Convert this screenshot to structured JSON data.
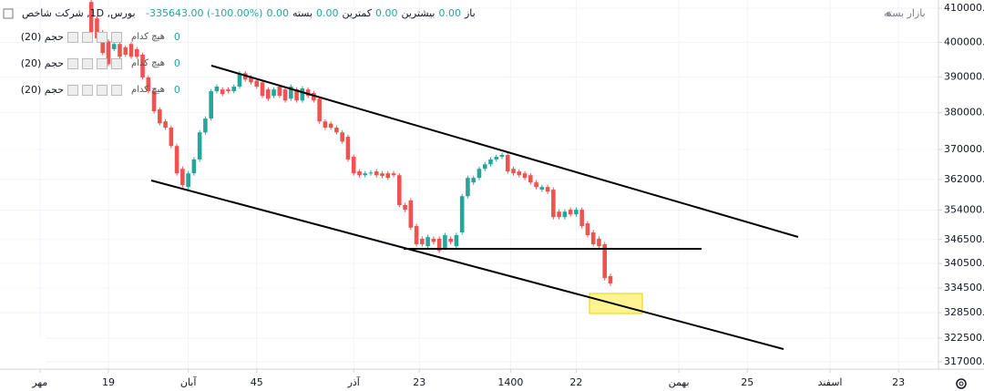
{
  "header": {
    "title": "بورس, 1D, شرکت شاخص",
    "open_label": "باز",
    "open": "0.00",
    "high_label": "بیشترین",
    "high": "0.00",
    "low_label": "کمترین",
    "low": "0.00",
    "close_label": "بسته",
    "close": "0.00",
    "change": "-335643.00 (-100.00%)",
    "status": "بازار بسته"
  },
  "indicators": [
    {
      "name": "حجم (20)",
      "source": "هیچ کدام",
      "value": 0
    },
    {
      "name": "حجم (20)",
      "source": "هیچ کدام",
      "value": 0
    },
    {
      "name": "حجم (20)",
      "source": "هیچ کدام",
      "value": 0
    }
  ],
  "chart_data": {
    "type": "candlestick",
    "log_scale": true,
    "grid": true,
    "up_color": "#26a69a",
    "down_color": "#ef5350",
    "x": [
      16,
      17,
      18,
      19,
      20,
      21,
      22,
      23,
      24,
      25,
      26,
      27,
      28,
      29,
      30,
      31,
      32,
      33,
      34,
      35,
      36,
      37,
      38,
      39,
      40,
      41,
      42,
      43,
      44,
      45,
      46,
      47,
      48,
      49,
      50,
      51,
      52,
      53,
      54,
      55,
      56,
      57,
      58,
      59,
      60,
      61,
      62,
      63,
      64,
      65,
      66,
      67,
      68,
      69,
      70,
      71,
      72,
      73,
      74,
      75,
      76,
      77,
      78,
      79,
      80,
      81,
      82,
      83,
      84,
      85,
      86,
      87,
      88,
      89,
      90,
      91,
      92,
      93,
      94,
      95,
      96,
      97,
      98,
      99,
      100,
      101,
      102,
      103,
      104,
      105,
      106,
      107
    ],
    "open": [
      411900,
      407000,
      403000,
      400300,
      398000,
      399500,
      398500,
      399500,
      398000,
      396400,
      389900,
      386000,
      380900,
      377600,
      375900,
      370900,
      364800,
      360000,
      363600,
      367300,
      374600,
      378400,
      386000,
      386500,
      386500,
      386000,
      387300,
      391100,
      389900,
      389000,
      388500,
      386500,
      384700,
      387300,
      386500,
      383900,
      386500,
      383400,
      386500,
      385500,
      383900,
      377600,
      377000,
      375900,
      374600,
      373400,
      368000,
      364100,
      363100,
      363600,
      364100,
      363600,
      363600,
      363600,
      363100,
      355300,
      356500,
      349900,
      346700,
      344800,
      346700,
      346700,
      344400,
      346700,
      344800,
      348300,
      357600,
      361200,
      362400,
      364800,
      366000,
      367300,
      368000,
      368500,
      364800,
      364100,
      363600,
      363100,
      361200,
      359300,
      360000,
      359300,
      353600,
      352200,
      354100,
      352900,
      354100,
      350600,
      348300,
      346700,
      345300,
      337400
    ],
    "high": [
      412500,
      407600,
      403600,
      400900,
      400100,
      400100,
      399100,
      400100,
      398600,
      397000,
      390500,
      386600,
      381500,
      378200,
      376500,
      371500,
      365400,
      364200,
      367900,
      375200,
      379000,
      386600,
      387900,
      387100,
      387100,
      387900,
      391700,
      391700,
      390500,
      389600,
      389100,
      387100,
      387100,
      387900,
      387100,
      387900,
      387100,
      387400,
      387100,
      386100,
      384500,
      378200,
      377600,
      376500,
      375200,
      374000,
      368600,
      364700,
      364200,
      364400,
      364700,
      364200,
      364200,
      364200,
      363700,
      355900,
      357100,
      350500,
      347300,
      347700,
      347300,
      347300,
      348200,
      347300,
      348200,
      358200,
      363000,
      363000,
      365400,
      366600,
      367900,
      368600,
      369100,
      369100,
      365400,
      364700,
      364200,
      363700,
      361800,
      360600,
      360600,
      359900,
      354200,
      354200,
      354700,
      354700,
      354700,
      351200,
      348900,
      347300,
      345900,
      338000
    ],
    "low": [
      402400,
      400500,
      396300,
      393100,
      397400,
      395200,
      395800,
      395200,
      395200,
      389300,
      385400,
      379800,
      376500,
      375300,
      370300,
      363000,
      359900,
      359400,
      363000,
      366700,
      374000,
      377800,
      385400,
      384600,
      385400,
      385400,
      386700,
      388700,
      387900,
      386700,
      384100,
      383300,
      384100,
      384100,
      382800,
      383300,
      382800,
      382800,
      384100,
      382800,
      377000,
      375300,
      375300,
      374000,
      371500,
      366700,
      363000,
      362500,
      362500,
      363000,
      362500,
      362300,
      361800,
      362500,
      354700,
      353500,
      348900,
      344700,
      344700,
      344200,
      345300,
      343100,
      343800,
      345300,
      344200,
      347700,
      357000,
      360600,
      361800,
      364200,
      365400,
      366700,
      367400,
      363500,
      363000,
      362500,
      361800,
      360600,
      359400,
      358700,
      358200,
      351600,
      351600,
      351600,
      352300,
      352300,
      349300,
      347000,
      344700,
      344200,
      336300,
      335000
    ],
    "close": [
      403000,
      401100,
      396900,
      393700,
      399500,
      395800,
      396400,
      395800,
      395800,
      389900,
      386000,
      380400,
      377100,
      375900,
      370900,
      363600,
      360500,
      363600,
      367300,
      374600,
      378400,
      386000,
      387300,
      385200,
      386000,
      387300,
      391100,
      389300,
      388500,
      387300,
      384700,
      383900,
      386500,
      384700,
      383400,
      387300,
      383400,
      386800,
      384700,
      383400,
      377600,
      375900,
      375900,
      374600,
      372100,
      367300,
      363600,
      363100,
      363600,
      363800,
      363100,
      362900,
      362400,
      363100,
      355300,
      354100,
      349500,
      345300,
      345300,
      347100,
      345900,
      343700,
      347600,
      345900,
      347600,
      357600,
      362400,
      362400,
      364800,
      366000,
      367300,
      368000,
      368500,
      364100,
      363600,
      363100,
      362400,
      361200,
      360000,
      360000,
      358800,
      352200,
      352200,
      353600,
      352900,
      354100,
      349900,
      347600,
      345300,
      344800,
      336900,
      335600
    ],
    "xlim": [
      0,
      164.5
    ],
    "xticks": [
      {
        "value": 7,
        "label": "مهر"
      },
      19,
      {
        "value": 33,
        "label": "آبان"
      },
      45,
      {
        "value": 62,
        "label": "آذر"
      },
      {
        "value": 73.5,
        "label": "23"
      },
      {
        "value": 89.5,
        "label": "1400"
      },
      {
        "value": 101,
        "label": "22"
      },
      {
        "value": 119,
        "label": "بهمن"
      },
      {
        "value": 131,
        "label": "25"
      },
      {
        "value": 145.5,
        "label": "اسفند"
      },
      {
        "value": 157.5,
        "label": "23"
      }
    ],
    "ylim": [
      315300,
      412500
    ],
    "yticks": [
      {
        "value": 410000,
        "label": "410000.00"
      },
      {
        "value": 400000,
        "label": "400000.00"
      },
      {
        "value": 390000,
        "label": "390000.00"
      },
      {
        "value": 380000,
        "label": "380000.00"
      },
      {
        "value": 370000,
        "label": "370000.00"
      },
      {
        "value": 362000,
        "label": "362000.00"
      },
      {
        "value": 354000,
        "label": "354000.00"
      },
      {
        "value": 346500,
        "label": "346500.00"
      },
      {
        "value": 340500,
        "label": "340500.00"
      },
      {
        "value": 334500,
        "label": "334500.00"
      },
      {
        "value": 328500,
        "label": "328500.00"
      },
      {
        "value": 322500,
        "label": "322500.00"
      },
      {
        "value": 317000,
        "label": "317000.00"
      }
    ]
  }
}
